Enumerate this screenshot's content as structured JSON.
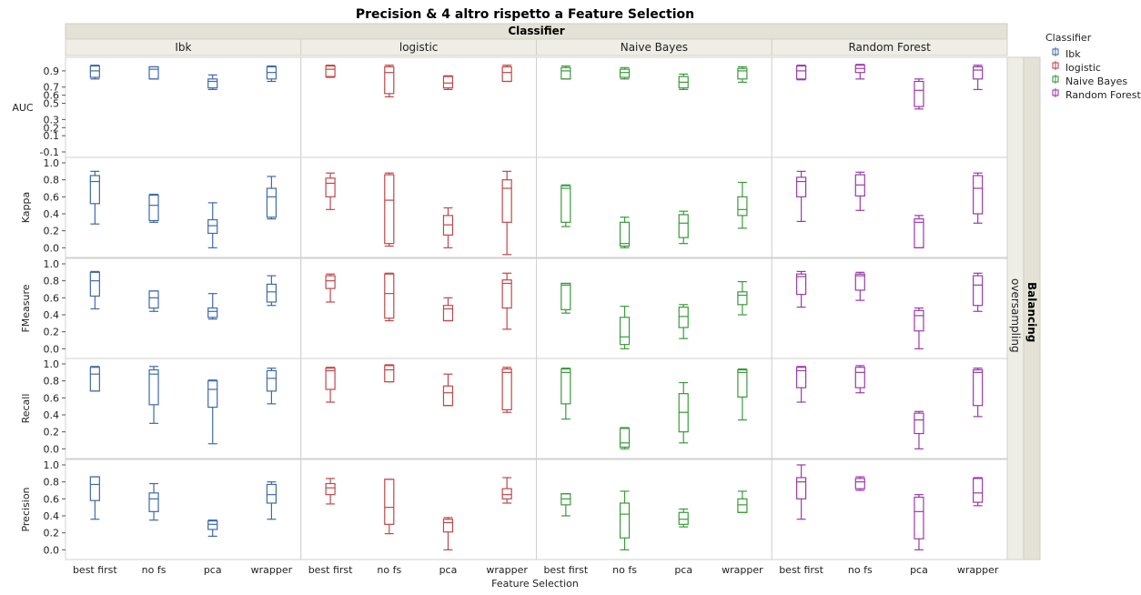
{
  "chart_data": {
    "type": "boxplot",
    "title": "Precision & 4 altro rispetto a Feature Selection",
    "column_group_label": "Classifier",
    "row_group_label": "Balancing",
    "row_group_value": "oversampling",
    "xlabel": "Feature Selection",
    "panels": [
      "Ibk",
      "logistic",
      "Naive Bayes",
      "Random Forest"
    ],
    "categories": [
      "best first",
      "no fs",
      "pca",
      "wrapper"
    ],
    "legend": {
      "title": "Classifier",
      "entries": [
        {
          "name": "Ibk",
          "color": "#3e6aa9"
        },
        {
          "name": "logistic",
          "color": "#c0474a"
        },
        {
          "name": "Naive Bayes",
          "color": "#3a9a3a"
        },
        {
          "name": "Random Forest",
          "color": "#9a3aab"
        }
      ]
    },
    "metrics": [
      {
        "name": "AUC",
        "ylim": [
          -0.1,
          1.0
        ],
        "ticks": [
          {
            "v": -0.1,
            "t": "-0.1"
          },
          {
            "v": 0.1,
            "t": "0.1"
          },
          {
            "v": 0.2,
            "t": "0.2"
          },
          {
            "v": 0.3,
            "t": "0.3"
          },
          {
            "v": 0.5,
            "t": "0.5"
          },
          {
            "v": 0.6,
            "t": "0.6"
          },
          {
            "v": 0.7,
            "t": "0.7"
          },
          {
            "v": 0.9,
            "t": "0.9"
          }
        ],
        "boxes": [
          [
            [
              0.8,
              0.82,
              0.9,
              0.96,
              0.97
            ],
            [
              0.8,
              0.8,
              0.92,
              0.95,
              0.95
            ],
            [
              0.67,
              0.69,
              0.77,
              0.8,
              0.85
            ],
            [
              0.77,
              0.8,
              0.88,
              0.95,
              0.96
            ]
          ],
          [
            [
              0.82,
              0.83,
              0.92,
              0.96,
              0.97
            ],
            [
              0.58,
              0.62,
              0.88,
              0.95,
              0.97
            ],
            [
              0.67,
              0.69,
              0.75,
              0.83,
              0.84
            ],
            [
              0.77,
              0.77,
              0.88,
              0.95,
              0.97
            ]
          ],
          [
            [
              0.8,
              0.8,
              0.9,
              0.94,
              0.96
            ],
            [
              0.8,
              0.82,
              0.88,
              0.92,
              0.94
            ],
            [
              0.67,
              0.69,
              0.76,
              0.83,
              0.86
            ],
            [
              0.76,
              0.8,
              0.9,
              0.93,
              0.95
            ]
          ],
          [
            [
              0.79,
              0.8,
              0.9,
              0.96,
              0.97
            ],
            [
              0.8,
              0.88,
              0.93,
              0.97,
              0.98
            ],
            [
              0.43,
              0.46,
              0.66,
              0.77,
              0.8
            ],
            [
              0.67,
              0.8,
              0.91,
              0.95,
              0.97
            ]
          ]
        ]
      },
      {
        "name": "Kappa",
        "ylim": [
          -0.05,
          1.0
        ],
        "ticks": [
          {
            "v": 0.0,
            "t": "0.0"
          },
          {
            "v": 0.2,
            "t": "0.2"
          },
          {
            "v": 0.4,
            "t": "0.4"
          },
          {
            "v": 0.6,
            "t": "0.6"
          },
          {
            "v": 0.8,
            "t": "0.8"
          },
          {
            "v": 1.0,
            "t": "1.0"
          }
        ],
        "boxes": [
          [
            [
              0.28,
              0.52,
              0.78,
              0.85,
              0.9
            ],
            [
              0.3,
              0.32,
              0.5,
              0.62,
              0.63
            ],
            [
              0.0,
              0.17,
              0.26,
              0.33,
              0.53
            ],
            [
              0.34,
              0.36,
              0.6,
              0.7,
              0.84
            ]
          ],
          [
            [
              0.45,
              0.6,
              0.76,
              0.82,
              0.88
            ],
            [
              0.02,
              0.05,
              0.56,
              0.86,
              0.88
            ],
            [
              0.0,
              0.15,
              0.27,
              0.38,
              0.47
            ],
            [
              -0.08,
              0.3,
              0.7,
              0.8,
              0.9
            ]
          ],
          [
            [
              0.25,
              0.3,
              0.7,
              0.73,
              0.74
            ],
            [
              0.0,
              0.02,
              0.05,
              0.3,
              0.36
            ],
            [
              0.05,
              0.12,
              0.29,
              0.39,
              0.43
            ],
            [
              0.23,
              0.38,
              0.45,
              0.6,
              0.77
            ]
          ],
          [
            [
              0.31,
              0.6,
              0.78,
              0.83,
              0.9
            ],
            [
              0.44,
              0.61,
              0.74,
              0.86,
              0.89
            ],
            [
              0.0,
              0.0,
              0.3,
              0.34,
              0.38
            ],
            [
              0.29,
              0.4,
              0.7,
              0.85,
              0.88
            ]
          ]
        ]
      },
      {
        "name": "FMeasure",
        "ylim": [
          -0.05,
          1.0
        ],
        "ticks": [
          {
            "v": 0.0,
            "t": "0.0"
          },
          {
            "v": 0.2,
            "t": "0.2"
          },
          {
            "v": 0.4,
            "t": "0.4"
          },
          {
            "v": 0.6,
            "t": "0.6"
          },
          {
            "v": 0.8,
            "t": "0.8"
          },
          {
            "v": 1.0,
            "t": "1.0"
          }
        ],
        "boxes": [
          [
            [
              0.47,
              0.62,
              0.8,
              0.9,
              0.91
            ],
            [
              0.44,
              0.48,
              0.6,
              0.68,
              0.68
            ],
            [
              0.35,
              0.37,
              0.44,
              0.48,
              0.65
            ],
            [
              0.51,
              0.55,
              0.67,
              0.76,
              0.86
            ]
          ],
          [
            [
              0.55,
              0.71,
              0.8,
              0.86,
              0.88
            ],
            [
              0.33,
              0.36,
              0.65,
              0.88,
              0.89
            ],
            [
              0.33,
              0.33,
              0.47,
              0.51,
              0.6
            ],
            [
              0.23,
              0.48,
              0.77,
              0.81,
              0.89
            ]
          ],
          [
            [
              0.42,
              0.46,
              0.75,
              0.77,
              0.77
            ],
            [
              0.0,
              0.05,
              0.14,
              0.37,
              0.5
            ],
            [
              0.12,
              0.25,
              0.38,
              0.49,
              0.52
            ],
            [
              0.4,
              0.52,
              0.63,
              0.67,
              0.79
            ]
          ],
          [
            [
              0.49,
              0.64,
              0.85,
              0.88,
              0.91
            ],
            [
              0.57,
              0.69,
              0.86,
              0.88,
              0.9
            ],
            [
              0.0,
              0.21,
              0.39,
              0.45,
              0.48
            ],
            [
              0.44,
              0.51,
              0.75,
              0.86,
              0.89
            ]
          ]
        ]
      },
      {
        "name": "Recall",
        "ylim": [
          -0.05,
          1.0
        ],
        "ticks": [
          {
            "v": 0.0,
            "t": "0.0"
          },
          {
            "v": 0.2,
            "t": "0.2"
          },
          {
            "v": 0.4,
            "t": "0.4"
          },
          {
            "v": 0.6,
            "t": "0.6"
          },
          {
            "v": 0.8,
            "t": "0.8"
          },
          {
            "v": 1.0,
            "t": "1.0"
          }
        ],
        "boxes": [
          [
            [
              0.68,
              0.68,
              0.88,
              0.96,
              0.97
            ],
            [
              0.3,
              0.52,
              0.88,
              0.93,
              0.97
            ],
            [
              0.06,
              0.49,
              0.7,
              0.8,
              0.81
            ],
            [
              0.53,
              0.68,
              0.83,
              0.92,
              0.95
            ]
          ],
          [
            [
              0.55,
              0.7,
              0.92,
              0.95,
              0.96
            ],
            [
              0.79,
              0.79,
              0.93,
              0.98,
              0.99
            ],
            [
              0.51,
              0.51,
              0.66,
              0.74,
              0.88
            ],
            [
              0.43,
              0.46,
              0.9,
              0.94,
              0.96
            ]
          ],
          [
            [
              0.35,
              0.53,
              0.9,
              0.94,
              0.95
            ],
            [
              0.0,
              0.02,
              0.07,
              0.24,
              0.25
            ],
            [
              0.07,
              0.2,
              0.43,
              0.65,
              0.78
            ],
            [
              0.34,
              0.61,
              0.9,
              0.93,
              0.94
            ]
          ],
          [
            [
              0.55,
              0.72,
              0.92,
              0.96,
              0.97
            ],
            [
              0.66,
              0.72,
              0.9,
              0.96,
              0.98
            ],
            [
              0.0,
              0.18,
              0.34,
              0.42,
              0.44
            ],
            [
              0.38,
              0.51,
              0.9,
              0.93,
              0.95
            ]
          ]
        ]
      },
      {
        "name": "Precision",
        "ylim": [
          -0.05,
          1.0
        ],
        "ticks": [
          {
            "v": 0.0,
            "t": "0.0"
          },
          {
            "v": 0.2,
            "t": "0.2"
          },
          {
            "v": 0.4,
            "t": "0.4"
          },
          {
            "v": 0.6,
            "t": "0.6"
          },
          {
            "v": 0.8,
            "t": "0.8"
          },
          {
            "v": 1.0,
            "t": "1.0"
          }
        ],
        "boxes": [
          [
            [
              0.36,
              0.58,
              0.77,
              0.86,
              0.86
            ],
            [
              0.35,
              0.45,
              0.6,
              0.67,
              0.78
            ],
            [
              0.16,
              0.24,
              0.3,
              0.34,
              0.35
            ],
            [
              0.36,
              0.55,
              0.65,
              0.77,
              0.8
            ]
          ],
          [
            [
              0.54,
              0.65,
              0.73,
              0.78,
              0.84
            ],
            [
              0.19,
              0.3,
              0.5,
              0.83,
              0.83
            ],
            [
              0.0,
              0.21,
              0.32,
              0.36,
              0.38
            ],
            [
              0.55,
              0.6,
              0.65,
              0.72,
              0.85
            ]
          ],
          [
            [
              0.4,
              0.53,
              0.6,
              0.66,
              0.66
            ],
            [
              0.0,
              0.14,
              0.42,
              0.55,
              0.69
            ],
            [
              0.27,
              0.3,
              0.36,
              0.44,
              0.48
            ],
            [
              0.44,
              0.44,
              0.53,
              0.6,
              0.69
            ]
          ],
          [
            [
              0.36,
              0.6,
              0.8,
              0.85,
              1.0
            ],
            [
              0.7,
              0.72,
              0.8,
              0.84,
              0.86
            ],
            [
              0.0,
              0.13,
              0.45,
              0.62,
              0.65
            ],
            [
              0.52,
              0.56,
              0.67,
              0.84,
              0.85
            ]
          ]
        ]
      }
    ]
  }
}
